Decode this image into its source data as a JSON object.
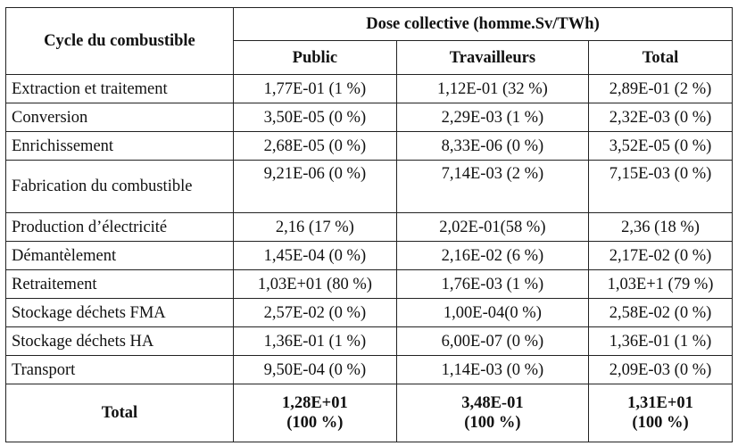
{
  "table": {
    "row_header": "Cycle du combustible",
    "group_header": "Dose collective (homme.Sv/TWh)",
    "columns": [
      "Public",
      "Travailleurs",
      "Total"
    ],
    "rows": [
      {
        "label": "Extraction et traitement",
        "public": "1,77E-01 (1 %)",
        "workers": "1,12E-01 (32 %)",
        "total": "2,89E-01 (2 %)"
      },
      {
        "label": "Conversion",
        "public": "3,50E-05 (0 %)",
        "workers": "2,29E-03 (1 %)",
        "total": "2,32E-03 (0 %)"
      },
      {
        "label": "Enrichissement",
        "public": "2,68E-05 (0 %)",
        "workers": "8,33E-06 (0 %)",
        "total": "3,52E-05 (0 %)"
      },
      {
        "label": "Fabrication du combustible",
        "public": "9,21E-06 (0 %)",
        "workers": "7,14E-03 (2 %)",
        "total": "7,15E-03 (0 %)"
      },
      {
        "label": "Production d’électricité",
        "public": "2,16 (17 %)",
        "workers": "2,02E-01(58 %)",
        "total": "2,36 (18 %)"
      },
      {
        "label": "Démantèlement",
        "public": "1,45E-04 (0 %)",
        "workers": "2,16E-02 (6 %)",
        "total": "2,17E-02 (0 %)"
      },
      {
        "label": "Retraitement",
        "public": "1,03E+01 (80 %)",
        "workers": "1,76E-03 (1 %)",
        "total": "1,03E+1 (79 %)"
      },
      {
        "label": "Stockage déchets FMA",
        "public": "2,57E-02 (0 %)",
        "workers": "1,00E-04(0 %)",
        "total": "2,58E-02 (0 %)"
      },
      {
        "label": "Stockage déchets HA",
        "public": "1,36E-01 (1 %)",
        "workers": "6,00E-07 (0 %)",
        "total": "1,36E-01 (1 %)"
      },
      {
        "label": "Transport",
        "public": "9,50E-04 (0 %)",
        "workers": "1,14E-03 (0 %)",
        "total": "2,09E-03 (0 %)"
      }
    ],
    "total_row": {
      "label": "Total",
      "public_value": "1,28E+01",
      "public_pct": "(100 %)",
      "workers_value": "3,48E-01",
      "workers_pct": "(100 %)",
      "total_value": "1,31E+01",
      "total_pct": "(100 %)"
    }
  }
}
